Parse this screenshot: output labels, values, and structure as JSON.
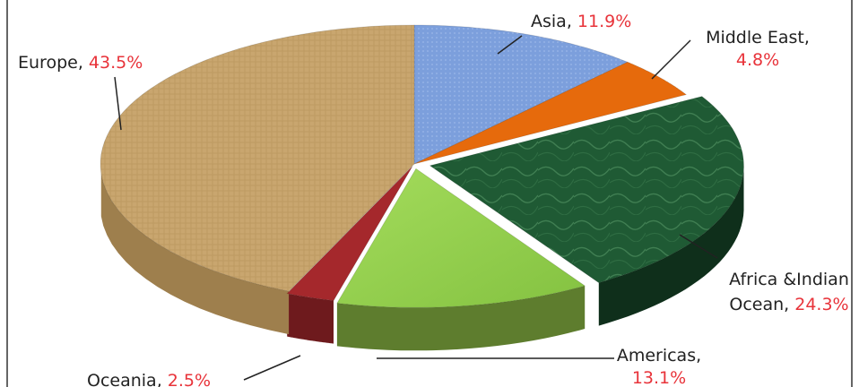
{
  "chart_data": {
    "type": "pie",
    "title": "",
    "slices": [
      {
        "label": "Asia",
        "value": 11.9,
        "value_text": "11.9%",
        "color": "#7c9fdc"
      },
      {
        "label": "Middle East",
        "value": 4.8,
        "value_text": "4.8%",
        "color": "#e66a0c"
      },
      {
        "label": "Africa &Indian Ocean",
        "value": 24.3,
        "value_text": "24.3%",
        "color": "#1f5a34"
      },
      {
        "label": "Americas",
        "value": 13.1,
        "value_text": "13.1%",
        "color": "#92d050"
      },
      {
        "label": "Oceania",
        "value": 2.5,
        "value_text": "2.5%",
        "color": "#a5282c"
      },
      {
        "label": "Europe",
        "value": 43.5,
        "value_text": "43.5%",
        "color": "#c9a66f"
      }
    ],
    "label_color": "#222222",
    "value_color": "#e8333a",
    "style": "3d-exploded-pie"
  }
}
